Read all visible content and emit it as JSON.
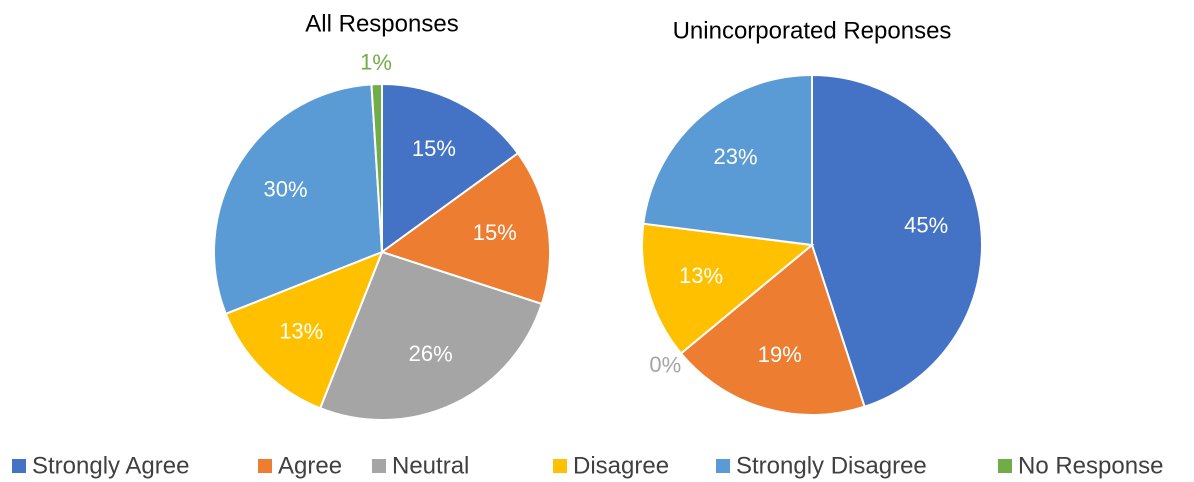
{
  "legend": {
    "categories": [
      "Strongly Agree",
      "Agree",
      "Neutral",
      "Disagree",
      "Strongly Disagree",
      "No Response"
    ],
    "colors": [
      "#4472c4",
      "#ed7d31",
      "#a5a5a5",
      "#ffc000",
      "#5b9bd5",
      "#70ad47"
    ]
  },
  "chart_data": [
    {
      "type": "pie",
      "title": "All Responses",
      "values": [
        15,
        15,
        26,
        13,
        30,
        1
      ]
    },
    {
      "type": "pie",
      "title": "Unincorporated Reponses",
      "values": [
        45,
        19,
        0,
        13,
        23,
        null
      ]
    }
  ]
}
